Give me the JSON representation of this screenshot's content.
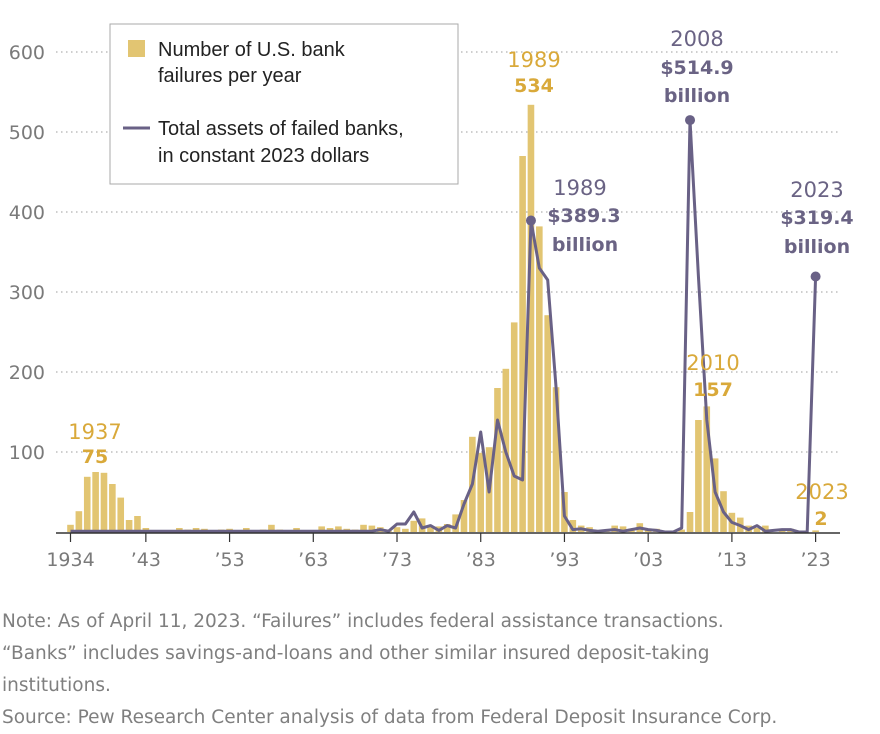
{
  "chart_data": {
    "type": "bar+line",
    "title": "",
    "xlabel": "",
    "ylabel": "",
    "ylim": [
      0,
      620
    ],
    "xlim": [
      1934,
      2023
    ],
    "y_ticks": [
      "600",
      "500",
      "400",
      "300",
      "200",
      "100"
    ],
    "y_tick_values": [
      600,
      500,
      400,
      300,
      200,
      100
    ],
    "x_ticks": [
      "1934",
      "’43",
      "’53",
      "’63",
      "’73",
      "’83",
      "’93",
      "’03",
      "’13",
      "’23"
    ],
    "x_tick_years": [
      1934,
      1943,
      1953,
      1963,
      1973,
      1983,
      1993,
      2003,
      2013,
      2023
    ],
    "grid": "horizontal dotted",
    "legend_placement": "top-left",
    "series": [
      {
        "name": "Number of U.S. bank failures per year",
        "type": "bar",
        "years": [
          1934,
          1935,
          1936,
          1937,
          1938,
          1939,
          1940,
          1941,
          1942,
          1943,
          1944,
          1945,
          1946,
          1947,
          1948,
          1949,
          1950,
          1951,
          1952,
          1953,
          1954,
          1955,
          1956,
          1957,
          1958,
          1959,
          1960,
          1961,
          1962,
          1963,
          1964,
          1965,
          1966,
          1967,
          1968,
          1969,
          1970,
          1971,
          1972,
          1973,
          1974,
          1975,
          1976,
          1977,
          1978,
          1979,
          1980,
          1981,
          1982,
          1983,
          1984,
          1985,
          1986,
          1987,
          1988,
          1989,
          1990,
          1991,
          1992,
          1993,
          1994,
          1995,
          1996,
          1997,
          1998,
          1999,
          2000,
          2001,
          2002,
          2003,
          2004,
          2005,
          2006,
          2007,
          2008,
          2009,
          2010,
          2011,
          2012,
          2013,
          2014,
          2015,
          2016,
          2017,
          2018,
          2019,
          2020,
          2021,
          2022,
          2023
        ],
        "values": [
          9,
          26,
          69,
          75,
          74,
          60,
          43,
          15,
          20,
          5,
          2,
          1,
          1,
          5,
          3,
          5,
          4,
          2,
          3,
          4,
          2,
          5,
          2,
          3,
          9,
          3,
          1,
          5,
          1,
          2,
          7,
          5,
          7,
          4,
          3,
          9,
          8,
          6,
          1,
          6,
          4,
          14,
          17,
          6,
          7,
          10,
          22,
          40,
          119,
          99,
          106,
          180,
          204,
          262,
          470,
          534,
          382,
          271,
          181,
          50,
          15,
          8,
          6,
          1,
          3,
          8,
          7,
          4,
          11,
          3,
          4,
          0,
          0,
          3,
          25,
          140,
          157,
          92,
          51,
          24,
          18,
          8,
          5,
          8,
          0,
          4,
          4,
          0,
          0,
          2
        ],
        "color": "#e2c572"
      },
      {
        "name": "Total assets of failed banks, in constant 2023 dollars",
        "type": "line",
        "years": [
          1934,
          1940,
          1950,
          1960,
          1965,
          1970,
          1971,
          1972,
          1973,
          1974,
          1975,
          1976,
          1977,
          1978,
          1979,
          1980,
          1981,
          1982,
          1983,
          1984,
          1985,
          1986,
          1987,
          1988,
          1989,
          1990,
          1991,
          1992,
          1993,
          1994,
          1995,
          1996,
          1997,
          1998,
          1999,
          2000,
          2001,
          2002,
          2003,
          2004,
          2005,
          2006,
          2007,
          2008,
          2009,
          2010,
          2011,
          2012,
          2013,
          2014,
          2015,
          2016,
          2017,
          2018,
          2019,
          2020,
          2021,
          2022,
          2023
        ],
        "values": [
          1,
          1,
          1,
          1,
          1,
          1,
          3,
          1,
          10,
          10,
          25,
          5,
          8,
          2,
          8,
          5,
          35,
          60,
          125,
          50,
          140,
          100,
          70,
          65,
          389.3,
          330,
          315,
          180,
          20,
          3,
          4,
          2,
          1,
          2,
          3,
          1,
          3,
          5,
          3,
          2,
          0,
          0,
          5,
          514.9,
          320,
          140,
          50,
          25,
          12,
          8,
          3,
          8,
          1,
          2,
          3,
          3,
          0,
          0,
          319.4
        ],
        "color": "#696186"
      }
    ],
    "annotations": [
      {
        "year_label": "1937",
        "value_label": "75",
        "series": "failures"
      },
      {
        "year_label": "1989",
        "value_label": "534",
        "series": "failures"
      },
      {
        "year_label": "1989",
        "value_label": "$389.3",
        "unit_label": "billion",
        "series": "assets"
      },
      {
        "year_label": "2008",
        "value_label": "$514.9",
        "unit_label": "billion",
        "series": "assets"
      },
      {
        "year_label": "2010",
        "value_label": "157",
        "series": "failures"
      },
      {
        "year_label": "2023",
        "value_label": "$319.4",
        "unit_label": "billion",
        "series": "assets"
      },
      {
        "year_label": "2023",
        "value_label": "2",
        "series": "failures"
      }
    ]
  },
  "legend": {
    "bars_line1": "Number of U.S. bank",
    "bars_line2": "failures per year",
    "line_line1": "Total assets of failed banks,",
    "line_line2": "in constant 2023 dollars"
  },
  "notes": {
    "line1": "Note: As of April 11, 2023. “Failures” includes federal assistance transactions.",
    "line2": "“Banks” includes savings-and-loans and other similar insured deposit-taking",
    "line3": "institutions.",
    "line4": "Source: Pew Research Center analysis of data from Federal Deposit Insurance Corp."
  },
  "colors": {
    "bar": "#e2c572",
    "line": "#696186",
    "bar_label": "#d9a93a",
    "line_label": "#6a6384",
    "grid": "#bdbdbd",
    "axis": "#333333"
  }
}
